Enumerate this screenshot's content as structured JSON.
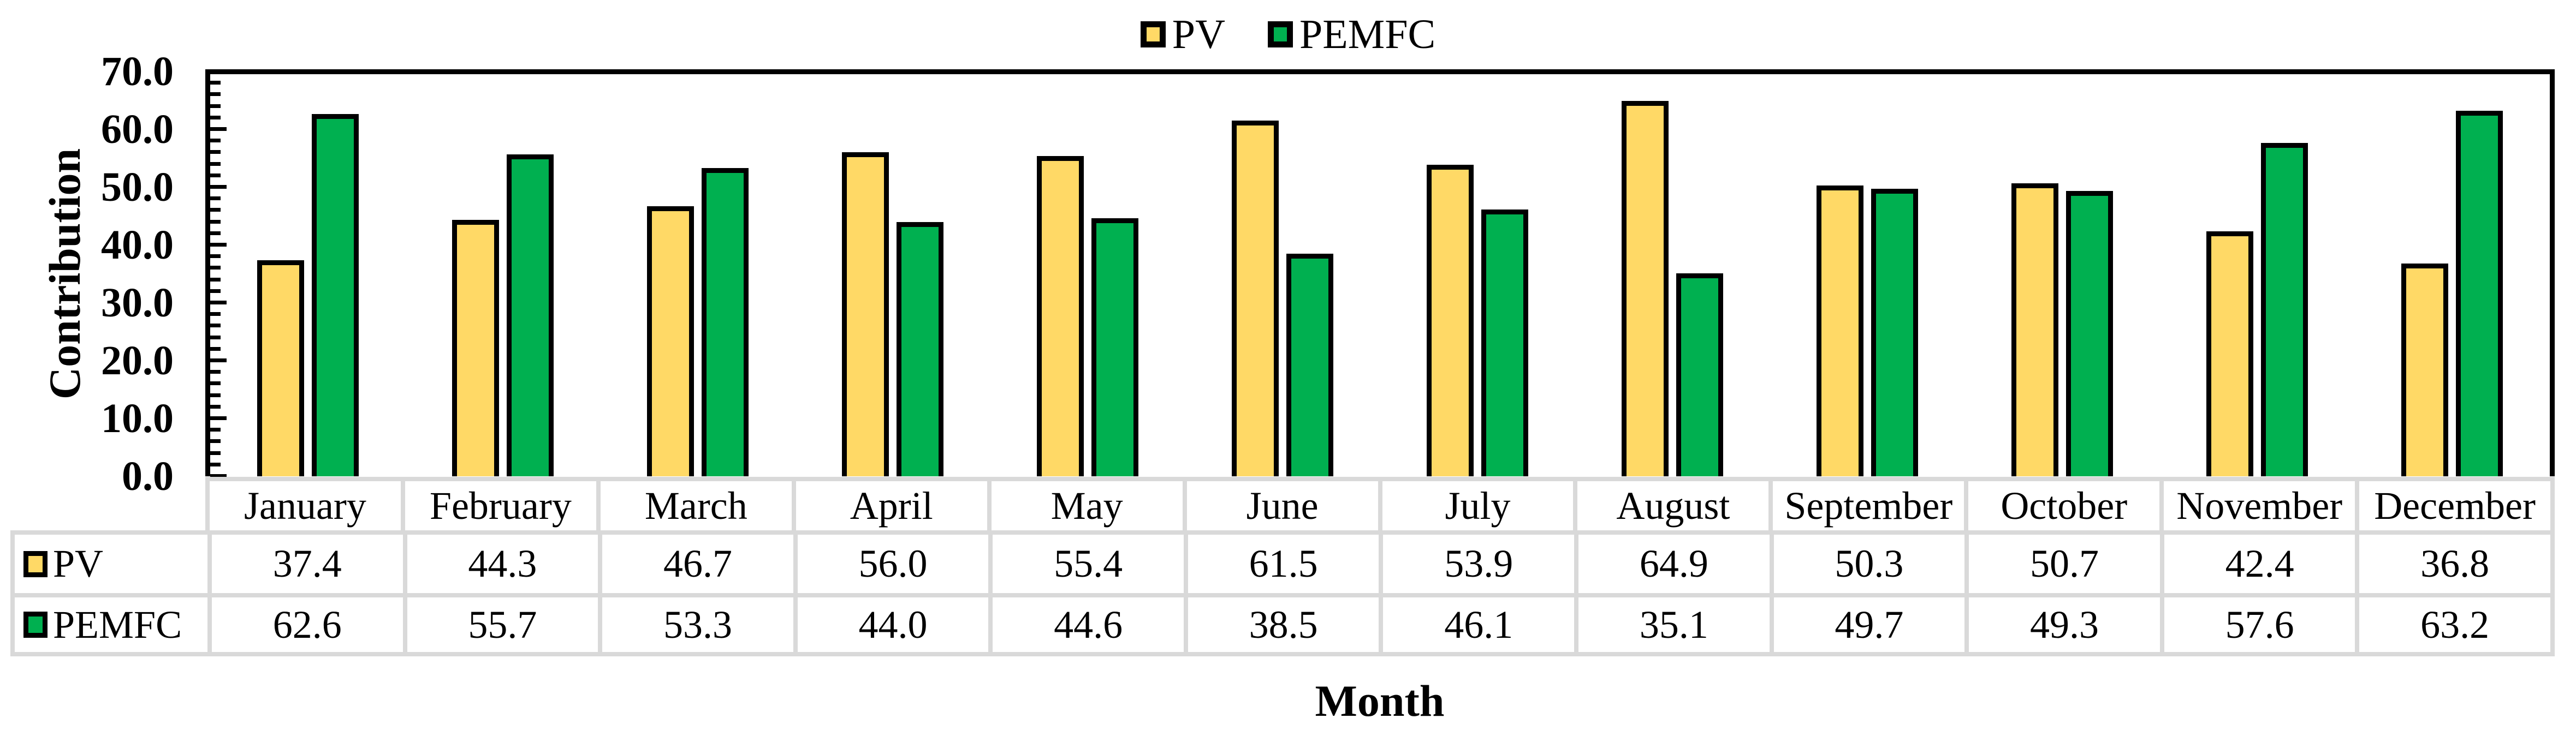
{
  "colors": {
    "pv": "#FFD966",
    "pemfc": "#00B050",
    "bar_border": "#000000",
    "table_border": "#D9D9D9",
    "background": "#FFFFFF"
  },
  "legend": {
    "position": "top-center",
    "items": [
      {
        "label": "PV",
        "color": "#FFD966"
      },
      {
        "label": "PEMFC",
        "color": "#00B050"
      }
    ]
  },
  "y_axis": {
    "title": "Contribution",
    "tick_labels": [
      "0.0",
      "10.0",
      "20.0",
      "30.0",
      "40.0",
      "50.0",
      "60.0",
      "70.0"
    ],
    "min": 0,
    "max": 70,
    "major_unit": 10,
    "minor_unit": 2
  },
  "x_axis": {
    "title": "Month"
  },
  "chart_data": {
    "type": "bar",
    "title": "",
    "xlabel": "Month",
    "ylabel": "Contribution",
    "ylim": [
      0,
      70
    ],
    "grid": false,
    "legend_position": "top",
    "categories": [
      "January",
      "February",
      "March",
      "April",
      "May",
      "June",
      "July",
      "August",
      "September",
      "October",
      "November",
      "December"
    ],
    "series": [
      {
        "name": "PV",
        "color": "#FFD966",
        "values": [
          37.4,
          44.3,
          46.7,
          56.0,
          55.4,
          61.5,
          53.9,
          64.9,
          50.3,
          50.7,
          42.4,
          36.8
        ]
      },
      {
        "name": "PEMFC",
        "color": "#00B050",
        "values": [
          62.6,
          55.7,
          53.3,
          44.0,
          44.6,
          38.5,
          46.1,
          35.1,
          49.7,
          49.3,
          57.6,
          63.2
        ]
      }
    ]
  },
  "table": {
    "rows": [
      {
        "label": "PV",
        "swatch_color": "#FFD966",
        "values": [
          "37.4",
          "44.3",
          "46.7",
          "56.0",
          "55.4",
          "61.5",
          "53.9",
          "64.9",
          "50.3",
          "50.7",
          "42.4",
          "36.8"
        ]
      },
      {
        "label": "PEMFC",
        "swatch_color": "#00B050",
        "values": [
          "62.6",
          "55.7",
          "53.3",
          "44.0",
          "44.6",
          "38.5",
          "46.1",
          "35.1",
          "49.7",
          "49.3",
          "57.6",
          "63.2"
        ]
      }
    ]
  }
}
